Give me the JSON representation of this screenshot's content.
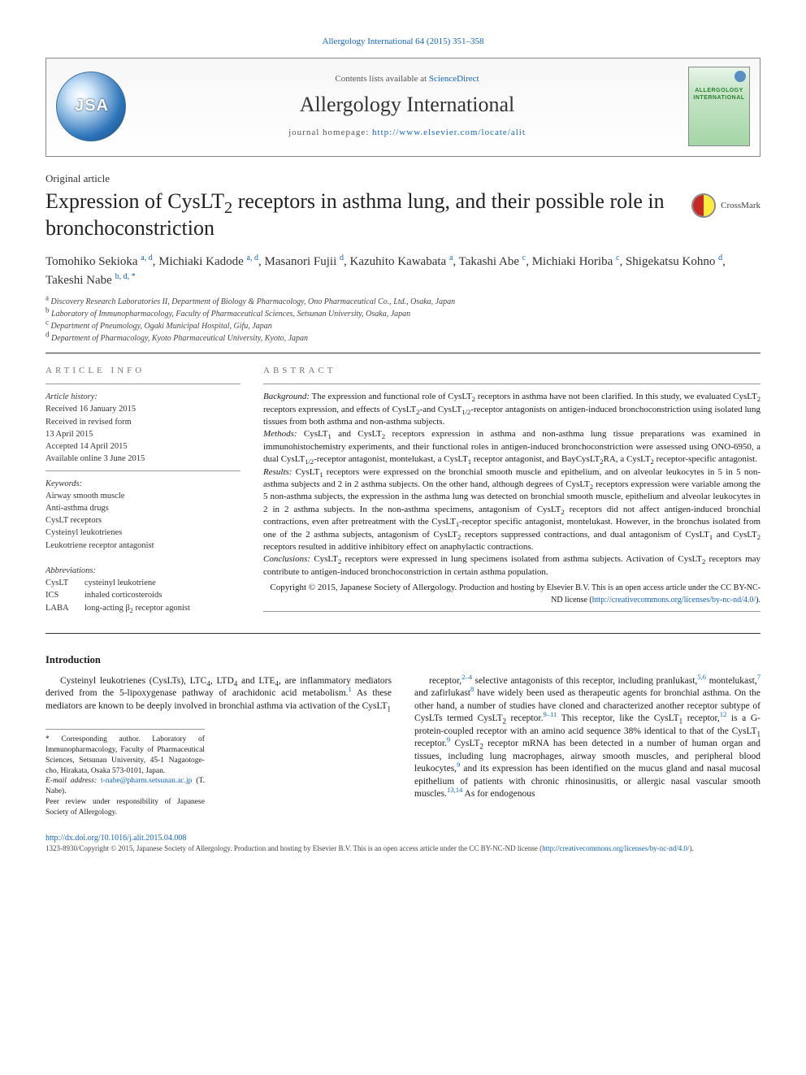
{
  "colors": {
    "link": "#1565c0",
    "text": "#1a1a1a",
    "muted": "#555555",
    "rule": "#333333"
  },
  "fonts": {
    "body_pt": 12,
    "title_pt": 26,
    "journal_pt": 26,
    "small_pt": 11
  },
  "top_citation": "Allergology International 64 (2015) 351–358",
  "header": {
    "contents_prefix": "Contents lists available at ",
    "contents_link": "ScienceDirect",
    "journal": "Allergology International",
    "homepage_prefix": "journal homepage: ",
    "homepage_url": "http://www.elsevier.com/locate/alit",
    "cover_text": "ALLERGOLOGY INTERNATIONAL"
  },
  "article_type": "Original article",
  "title_html": "Expression of CysLT<sub>2</sub> receptors in asthma lung, and their possible role in bronchoconstriction",
  "crossmark_label": "CrossMark",
  "authors_html": "Tomohiko Sekioka <sup><span class=\"link\">a, d</span></sup>, Michiaki Kadode <sup><span class=\"link\">a, d</span></sup>, Masanori Fujii <sup><span class=\"link\">d</span></sup>, Kazuhito Kawabata <sup><span class=\"link\">a</span></sup>, Takashi Abe <sup><span class=\"link\">c</span></sup>, Michiaki Horiba <sup><span class=\"link\">c</span></sup>, Shigekatsu Kohno <sup><span class=\"link\">d</span></sup>, Takeshi Nabe <sup><span class=\"link\">b, d, *</span></sup>",
  "affiliations": [
    {
      "sup": "a",
      "text": "Discovery Research Laboratories II, Department of Biology & Pharmacology, Ono Pharmaceutical Co., Ltd., Osaka, Japan"
    },
    {
      "sup": "b",
      "text": "Laboratory of Immunopharmacology, Faculty of Pharmaceutical Sciences, Setsunan University, Osaka, Japan"
    },
    {
      "sup": "c",
      "text": "Department of Pneumology, Ogaki Municipal Hospital, Gifu, Japan"
    },
    {
      "sup": "d",
      "text": "Department of Pharmacology, Kyoto Pharmaceutical University, Kyoto, Japan"
    }
  ],
  "article_info": {
    "head": "ARTICLE INFO",
    "history_label": "Article history:",
    "history": [
      "Received 16 January 2015",
      "Received in revised form",
      "13 April 2015",
      "Accepted 14 April 2015",
      "Available online 3 June 2015"
    ],
    "keywords_label": "Keywords:",
    "keywords": [
      "Airway smooth muscle",
      "Anti-asthma drugs",
      "CysLT receptors",
      "Cysteinyl leukotrienes",
      "Leukotriene receptor antagonist"
    ],
    "abbrev_label": "Abbreviations:",
    "abbreviations": [
      {
        "k": "CysLT",
        "v": "cysteinyl leukotriene"
      },
      {
        "k": "ICS",
        "v": "inhaled corticosteroids"
      },
      {
        "k": "LABA",
        "v_html": "long-acting β<sub>2</sub> receptor agonist"
      }
    ]
  },
  "abstract": {
    "head": "ABSTRACT",
    "background_html": "<span class=\"ab-head\">Background:</span> The expression and functional role of CysLT<sub>2</sub> receptors in asthma have not been clarified. In this study, we evaluated CysLT<sub>2</sub> receptors expression, and effects of CysLT<sub>2</sub>-and CysLT<sub>1/2</sub>-receptor antagonists on antigen-induced bronchoconstriction using isolated lung tissues from both asthma and non-asthma subjects.",
    "methods_html": "<span class=\"ab-head\">Methods:</span> CysLT<sub>1</sub> and CysLT<sub>2</sub> receptors expression in asthma and non-asthma lung tissue preparations was examined in immunohistochemistry experiments, and their functional roles in antigen-induced bronchoconstriction were assessed using ONO-6950, a dual CysLT<sub>1/2</sub>-receptor antagonist, montelukast, a CysLT<sub>1</sub> receptor antagonist, and BayCysLT<sub>2</sub>RA, a CysLT<sub>2</sub> receptor-specific antagonist.",
    "results_html": "<span class=\"ab-head\">Results:</span> CysLT<sub>1</sub> receptors were expressed on the bronchial smooth muscle and epithelium, and on alveolar leukocytes in 5 in 5 non-asthma subjects and 2 in 2 asthma subjects. On the other hand, although degrees of CysLT<sub>2</sub> receptors expression were variable among the 5 non-asthma subjects, the expression in the asthma lung was detected on bronchial smooth muscle, epithelium and alveolar leukocytes in 2 in 2 asthma subjects. In the non-asthma specimens, antagonism of CysLT<sub>2</sub> receptors did not affect antigen-induced bronchial contractions, even after pretreatment with the CysLT<sub>1</sub>-receptor specific antagonist, montelukast. However, in the bronchus isolated from one of the 2 asthma subjects, antagonism of CysLT<sub>2</sub> receptors suppressed contractions, and dual antagonism of CysLT<sub>1</sub> and CysLT<sub>2</sub> receptors resulted in additive inhibitory effect on anaphylactic contractions.",
    "conclusions_html": "<span class=\"ab-head\">Conclusions:</span> CysLT<sub>2</sub> receptors were expressed in lung specimens isolated from asthma subjects. Activation of CysLT<sub>2</sub> receptors may contribute to antigen-induced bronchoconstriction in certain asthma population.",
    "copyright_prefix": "Copyright © 2015, Japanese Society of Allergology. ",
    "copyright_tail": "Production and hosting by Elsevier B.V. This is an open access article under the CC BY-NC-ND license (",
    "license_url": "http://creativecommons.org/licenses/by-nc-nd/4.0/",
    "copyright_close": ")."
  },
  "intro": {
    "head": "Introduction",
    "para1_html": "Cysteinyl leukotrienes (CysLTs), LTC<sub>4</sub>, LTD<sub>4</sub> and LTE<sub>4</sub>, are inflammatory mediators derived from the 5-lipoxygenase pathway of arachidonic acid metabolism.<sup><span class=\"link\">1</span></sup> As these mediators are known to be deeply involved in bronchial asthma via activation of the CysLT<sub>1</sub>",
    "para2_html": "receptor,<sup><span class=\"link\">2–4</span></sup> selective antagonists of this receptor, including pranlukast,<sup><span class=\"link\">5,6</span></sup> montelukast,<sup><span class=\"link\">7</span></sup> and zafirlukast<sup><span class=\"link\">8</span></sup> have widely been used as therapeutic agents for bronchial asthma. On the other hand, a number of studies have cloned and characterized another receptor subtype of CysLTs termed CysLT<sub>2</sub> receptor.<sup><span class=\"link\">9–11</span></sup> This receptor, like the CysLT<sub>1</sub> receptor,<sup><span class=\"link\">12</span></sup> is a G-protein-coupled receptor with an amino acid sequence 38% identical to that of the CysLT<sub>1</sub> receptor.<sup><span class=\"link\">9</span></sup> CysLT<sub>2</sub> receptor mRNA has been detected in a number of human organ and tissues, including lung macrophages, airway smooth muscles, and peripheral blood leukocytes,<sup><span class=\"link\">9</span></sup> and its expression has been identified on the mucus gland and nasal mucosal epithelium of patients with chronic rhinosinusitis, or allergic nasal vascular smooth muscles.<sup><span class=\"link\">13,14</span></sup> As for endogenous"
  },
  "corresponding": {
    "star": "*",
    "text": "Corresponding author. Laboratory of Immunopharmacology, Faculty of Pharmaceutical Sciences, Setsunan University, 45-1 Nagaotoge-cho, Hirakata, Osaka 573-0101, Japan.",
    "email_label": "E-mail address: ",
    "email": "t-nabe@pharm.setsunan.ac.jp",
    "email_person": " (T. Nabe).",
    "peer": "Peer review under responsibility of Japanese Society of Allergology."
  },
  "footer": {
    "doi": "http://dx.doi.org/10.1016/j.alit.2015.04.008",
    "issn_line_html": "1323-8930/Copyright © 2015, Japanese Society of Allergology. Production and hosting by Elsevier B.V. This is an open access article under the CC BY-NC-ND license (<span class=\"link\">http://creativecommons.org/licenses/by-nc-nd/4.0/</span>)."
  }
}
